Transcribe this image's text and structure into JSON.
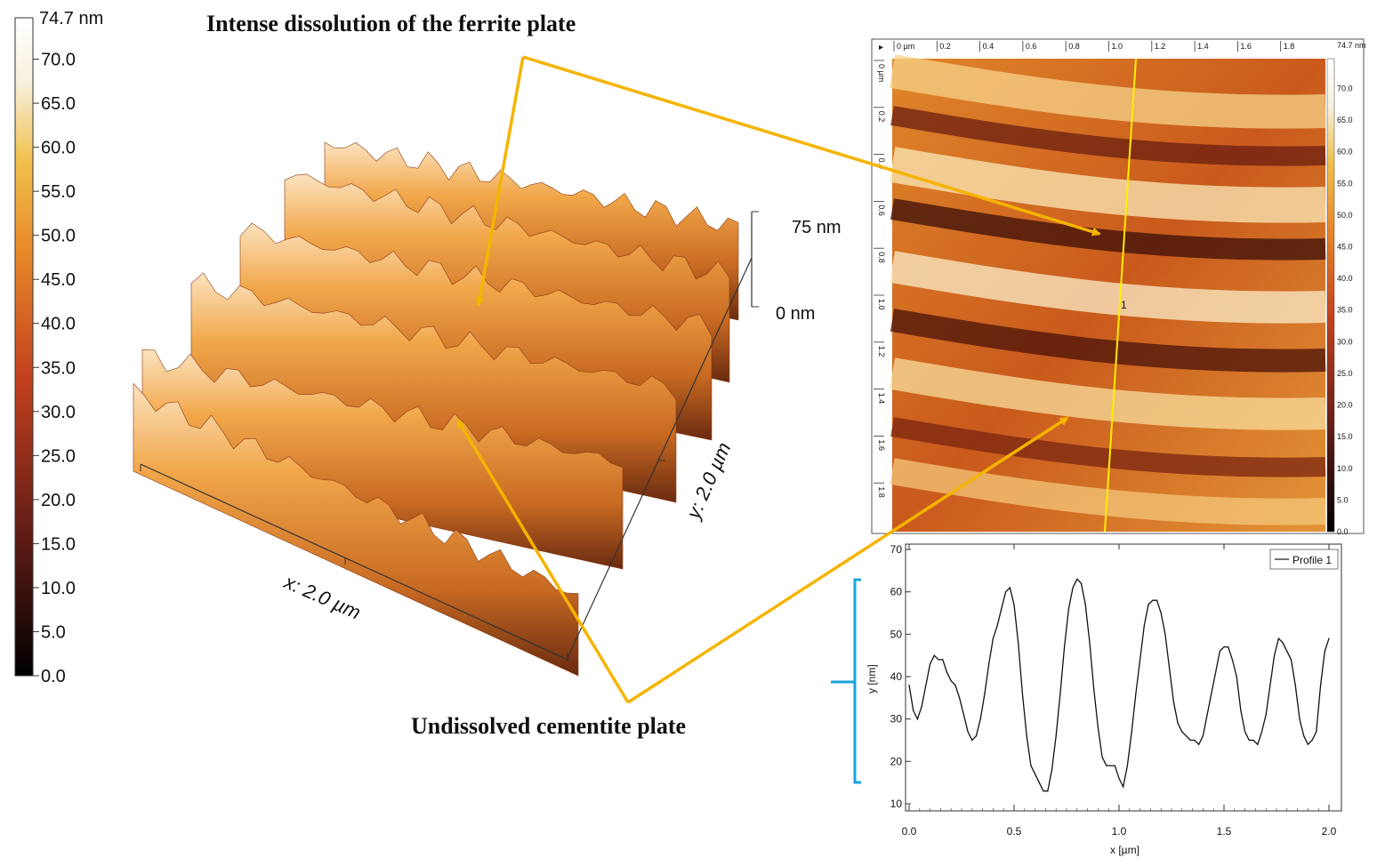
{
  "annotations": {
    "ferrite_label": "Intense dissolution of the ferrite plate",
    "cementite_label": "Undissolved cementite plate",
    "arrow_color": "#f5b400"
  },
  "colorbar_main": {
    "top_label": "74.7 nm",
    "ticks": [
      "70.0",
      "65.0",
      "60.0",
      "55.0",
      "50.0",
      "45.0",
      "40.0",
      "35.0",
      "30.0",
      "25.0",
      "20.0",
      "15.0",
      "10.0",
      "5.0",
      "0.0"
    ],
    "tick_values": [
      70,
      65,
      60,
      55,
      50,
      45,
      40,
      35,
      30,
      25,
      20,
      15,
      10,
      5,
      0
    ],
    "max": 74.7
  },
  "surface3d": {
    "z_max_label": "75 nm",
    "z_min_label": "0 nm",
    "x_axis_label": "x: 2.0 µm",
    "y_axis_label": "y: 2.0 µm"
  },
  "afm_map": {
    "top_ticks": [
      "0 µm",
      "0.2",
      "0.4",
      "0.6",
      "0.8",
      "1.0",
      "1.2",
      "1.4",
      "1.6",
      "1.8"
    ],
    "left_ticks": [
      "0 µm",
      "0.2",
      "0.4",
      "0.6",
      "0.8",
      "1.0",
      "1.2",
      "1.4",
      "1.6",
      "1.8"
    ],
    "profile_marker": "1",
    "colorbar_top": "74.7 nm",
    "colorbar_ticks": [
      "70.0",
      "65.0",
      "60.0",
      "55.0",
      "50.0",
      "45.0",
      "40.0",
      "35.0",
      "30.0",
      "25.0",
      "20.0",
      "15.0",
      "10.0",
      "5.0",
      "0.0"
    ],
    "profile_line_color": "#ffee00"
  },
  "chart_data": {
    "type": "line",
    "xlabel": "x [µm]",
    "ylabel": "y [nm]",
    "xlim": [
      0,
      2.0
    ],
    "ylim": [
      10,
      70
    ],
    "xticks": [
      "0.0",
      "0.5",
      "1.0",
      "1.5",
      "2.0"
    ],
    "xtick_values": [
      0,
      0.5,
      1.0,
      1.5,
      2.0
    ],
    "yticks": [
      "10",
      "20",
      "30",
      "40",
      "50",
      "60",
      "70"
    ],
    "ytick_values": [
      10,
      20,
      30,
      40,
      50,
      60,
      70
    ],
    "legend": "top-right",
    "bracket_color": "#1ba3e0",
    "series": [
      {
        "name": "Profile 1",
        "x": [
          0.0,
          0.02,
          0.04,
          0.06,
          0.08,
          0.1,
          0.12,
          0.14,
          0.16,
          0.18,
          0.2,
          0.22,
          0.24,
          0.26,
          0.28,
          0.3,
          0.32,
          0.34,
          0.36,
          0.38,
          0.4,
          0.42,
          0.44,
          0.46,
          0.48,
          0.5,
          0.52,
          0.54,
          0.56,
          0.58,
          0.6,
          0.62,
          0.64,
          0.66,
          0.68,
          0.7,
          0.72,
          0.74,
          0.76,
          0.78,
          0.8,
          0.82,
          0.84,
          0.86,
          0.88,
          0.9,
          0.92,
          0.94,
          0.96,
          0.98,
          1.0,
          1.02,
          1.04,
          1.06,
          1.08,
          1.1,
          1.12,
          1.14,
          1.16,
          1.18,
          1.2,
          1.22,
          1.24,
          1.26,
          1.28,
          1.3,
          1.32,
          1.34,
          1.36,
          1.38,
          1.4,
          1.42,
          1.44,
          1.46,
          1.48,
          1.5,
          1.52,
          1.54,
          1.56,
          1.58,
          1.6,
          1.62,
          1.64,
          1.66,
          1.68,
          1.7,
          1.72,
          1.74,
          1.76,
          1.78,
          1.8,
          1.82,
          1.84,
          1.86,
          1.88,
          1.9,
          1.92,
          1.94,
          1.96,
          1.98,
          2.0
        ],
        "y": [
          38,
          32,
          30,
          33,
          38,
          43,
          45,
          44,
          44,
          41,
          39,
          38,
          35,
          31,
          27,
          25,
          26,
          30,
          36,
          43,
          49,
          52,
          56,
          60,
          61,
          57,
          48,
          36,
          26,
          19,
          17,
          15,
          13,
          13,
          18,
          26,
          36,
          47,
          56,
          61,
          63,
          62,
          57,
          48,
          37,
          28,
          21,
          19,
          19,
          19,
          16,
          14,
          19,
          27,
          36,
          44,
          52,
          57,
          58,
          58,
          55,
          50,
          42,
          34,
          29,
          27,
          26,
          25,
          25,
          24,
          26,
          31,
          36,
          41,
          46,
          47,
          47,
          44,
          40,
          32,
          27,
          25,
          25,
          24,
          27,
          31,
          38,
          45,
          49,
          48,
          46,
          44,
          38,
          30,
          26,
          24,
          25,
          27,
          38,
          46,
          49
        ]
      }
    ]
  }
}
